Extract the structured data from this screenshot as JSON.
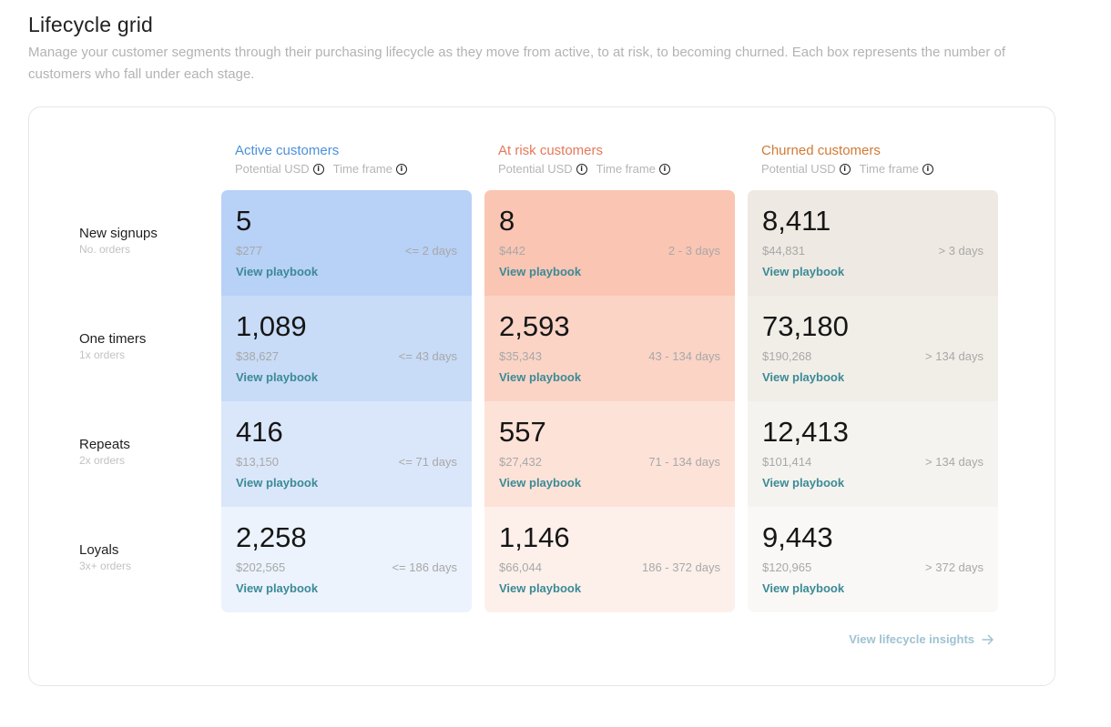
{
  "page": {
    "title": "Lifecycle grid",
    "description": "Manage your customer segments through their purchasing lifecycle as they move from active, to at risk, to becoming churned. Each box represents the number of customers who fall under each stage."
  },
  "columns": [
    {
      "title": "Active customers",
      "potential_label": "Potential USD",
      "timeframe_label": "Time frame",
      "color": "#4a90d9"
    },
    {
      "title": "At risk customers",
      "potential_label": "Potential USD",
      "timeframe_label": "Time frame",
      "color": "#e5785a"
    },
    {
      "title": "Churned customers",
      "potential_label": "Potential USD",
      "timeframe_label": "Time frame",
      "color": "#d07a35"
    }
  ],
  "rows": [
    {
      "title": "New signups",
      "subtitle": "No. orders"
    },
    {
      "title": "One timers",
      "subtitle": "1x orders"
    },
    {
      "title": "Repeats",
      "subtitle": "2x orders"
    },
    {
      "title": "Loyals",
      "subtitle": "3x+ orders"
    }
  ],
  "grid": [
    [
      {
        "count": "5",
        "usd": "$277",
        "timeframe": "<= 2 days",
        "link": "View playbook",
        "bg": "#b8d1f7"
      },
      {
        "count": "8",
        "usd": "$442",
        "timeframe": "2 - 3 days",
        "link": "View playbook",
        "bg": "#fac5b3"
      },
      {
        "count": "8,411",
        "usd": "$44,831",
        "timeframe": "> 3 days",
        "link": "View playbook",
        "bg": "#eee9e2"
      }
    ],
    [
      {
        "count": "1,089",
        "usd": "$38,627",
        "timeframe": "<= 43 days",
        "link": "View playbook",
        "bg": "#c8dbf7"
      },
      {
        "count": "2,593",
        "usd": "$35,343",
        "timeframe": "43 - 134 days",
        "link": "View playbook",
        "bg": "#fbd4c6"
      },
      {
        "count": "73,180",
        "usd": "$190,268",
        "timeframe": "> 134 days",
        "link": "View playbook",
        "bg": "#f1eee8"
      }
    ],
    [
      {
        "count": "416",
        "usd": "$13,150",
        "timeframe": "<= 71 days",
        "link": "View playbook",
        "bg": "#dae7fa"
      },
      {
        "count": "557",
        "usd": "$27,432",
        "timeframe": "71 - 134 days",
        "link": "View playbook",
        "bg": "#fde2d8"
      },
      {
        "count": "12,413",
        "usd": "$101,414",
        "timeframe": "> 134 days",
        "link": "View playbook",
        "bg": "#f5f3ef"
      }
    ],
    [
      {
        "count": "2,258",
        "usd": "$202,565",
        "timeframe": "<= 186 days",
        "link": "View playbook",
        "bg": "#ecf3fd"
      },
      {
        "count": "1,146",
        "usd": "$66,044",
        "timeframe": "186 - 372 days",
        "link": "View playbook",
        "bg": "#fdf0eb"
      },
      {
        "count": "9,443",
        "usd": "$120,965",
        "timeframe": "> 372 days",
        "link": "View playbook",
        "bg": "#f9f8f6"
      }
    ]
  ],
  "footer": {
    "insights_link": "View lifecycle insights",
    "icon": "arrow-right-icon"
  },
  "icons": {
    "info": "info-icon"
  }
}
